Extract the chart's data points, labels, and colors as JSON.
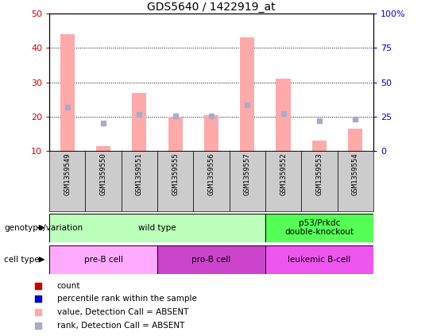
{
  "title": "GDS5640 / 1422919_at",
  "samples": [
    "GSM1359549",
    "GSM1359550",
    "GSM1359551",
    "GSM1359555",
    "GSM1359556",
    "GSM1359557",
    "GSM1359552",
    "GSM1359553",
    "GSM1359554"
  ],
  "bar_values": [
    44.0,
    11.5,
    27.0,
    20.0,
    20.5,
    43.0,
    31.0,
    13.0,
    16.5
  ],
  "rank_values": [
    32.0,
    20.5,
    26.5,
    25.5,
    25.5,
    33.5,
    27.5,
    22.0,
    23.5
  ],
  "ylim_left": [
    10,
    50
  ],
  "ylim_right": [
    0,
    100
  ],
  "yticks_left": [
    10,
    20,
    30,
    40,
    50
  ],
  "yticks_right": [
    0,
    25,
    50,
    75,
    100
  ],
  "ytick_labels_right": [
    "0",
    "25",
    "50",
    "75",
    "100%"
  ],
  "bar_color": "#ffaaaa",
  "rank_color": "#aaaacc",
  "genotype_groups": [
    {
      "label": "wild type",
      "start": 0,
      "end": 6,
      "color": "#bbffbb"
    },
    {
      "label": "p53/Prkdc\ndouble-knockout",
      "start": 6,
      "end": 9,
      "color": "#55ff55"
    }
  ],
  "cell_type_groups": [
    {
      "label": "pre-B cell",
      "start": 0,
      "end": 3,
      "color": "#ffaaff"
    },
    {
      "label": "pro-B cell",
      "start": 3,
      "end": 6,
      "color": "#cc44cc"
    },
    {
      "label": "leukemic B-cell",
      "start": 6,
      "end": 9,
      "color": "#ee55ee"
    }
  ],
  "legend_colors": [
    "#cc0000",
    "#0000cc",
    "#ffaaaa",
    "#aaaacc"
  ],
  "legend_labels": [
    "count",
    "percentile rank within the sample",
    "value, Detection Call = ABSENT",
    "rank, Detection Call = ABSENT"
  ],
  "left_axis_color": "#cc0000",
  "right_axis_color": "#0000cc",
  "row_label_genotype": "genotype/variation",
  "row_label_celltype": "cell type",
  "sample_box_color": "#cccccc",
  "background_color": "#ffffff",
  "grid_yticks": [
    20,
    30,
    40
  ]
}
